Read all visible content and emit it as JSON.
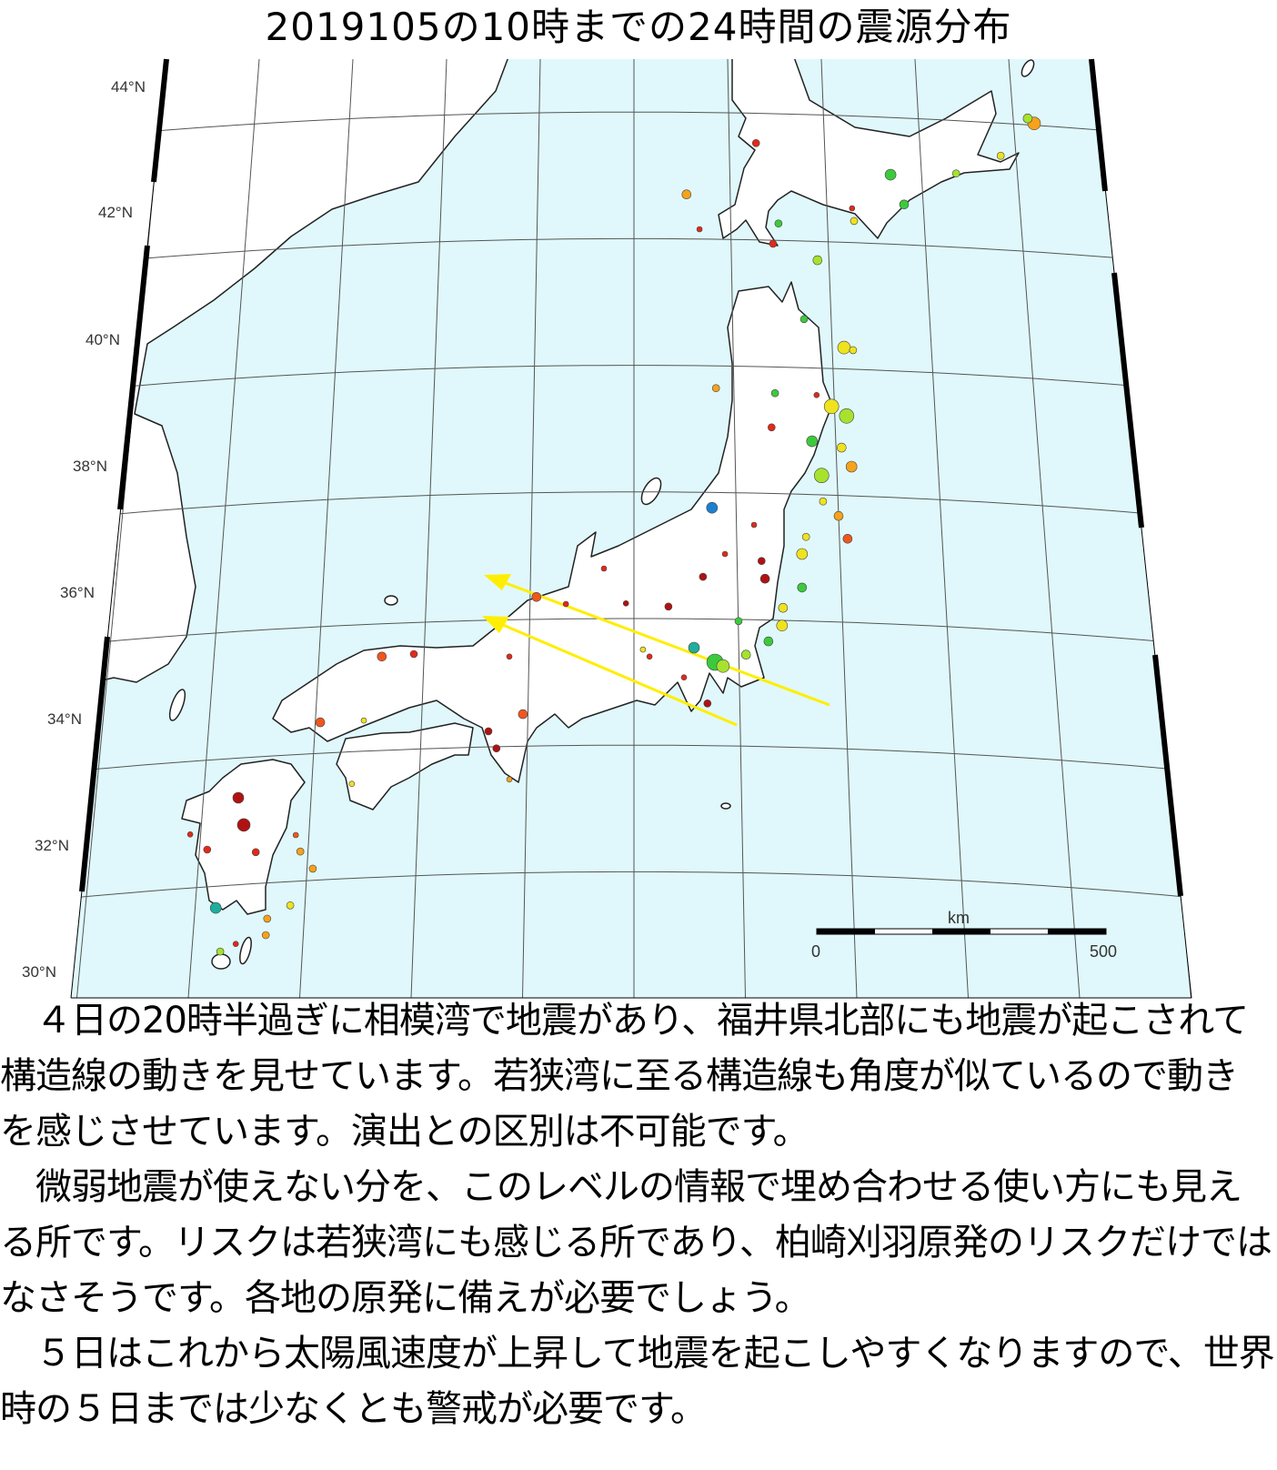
{
  "title": "2019105の10時までの24時間の震源分布",
  "map": {
    "lat_labels": [
      "44°N",
      "42°N",
      "40°N",
      "38°N",
      "36°N",
      "34°N",
      "32°N",
      "30°N"
    ],
    "scale_bar": {
      "unit": "km",
      "start": "0",
      "end": "500"
    },
    "colors": {
      "sea": "#e0f8fb",
      "land": "#ffffff",
      "arrow": "#ffee00",
      "darkred": "#b01212",
      "red": "#e02a1a",
      "orangered": "#f0561e",
      "orange": "#f7a21b",
      "yellow": "#efe21f",
      "lime": "#a6e22e",
      "green": "#3cca3c",
      "teal": "#1fae9c",
      "blue": "#1e7fd0"
    },
    "epicenters": [
      {
        "lon": 146.0,
        "lat": 43.82,
        "c": "orange",
        "s": 7
      },
      {
        "lon": 145.87,
        "lat": 43.9,
        "c": "lime",
        "s": 5
      },
      {
        "lon": 145.33,
        "lat": 43.31,
        "c": "yellow",
        "s": 4
      },
      {
        "lon": 144.44,
        "lat": 43.03,
        "c": "lime",
        "s": 4
      },
      {
        "lon": 143.13,
        "lat": 43.01,
        "c": "green",
        "s": 6
      },
      {
        "lon": 143.4,
        "lat": 42.54,
        "c": "green",
        "s": 5
      },
      {
        "lon": 140.44,
        "lat": 43.51,
        "c": "red",
        "s": 4
      },
      {
        "lon": 139.05,
        "lat": 42.7,
        "c": "orange",
        "s": 5
      },
      {
        "lon": 142.36,
        "lat": 42.48,
        "c": "red",
        "s": 3
      },
      {
        "lon": 142.4,
        "lat": 42.28,
        "c": "yellow",
        "s": 4
      },
      {
        "lon": 139.31,
        "lat": 42.15,
        "c": "red",
        "s": 3
      },
      {
        "lon": 140.78,
        "lat": 41.92,
        "c": "red",
        "s": 4
      },
      {
        "lon": 140.89,
        "lat": 42.24,
        "c": "green",
        "s": 4
      },
      {
        "lon": 141.67,
        "lat": 41.66,
        "c": "lime",
        "s": 5
      },
      {
        "lon": 141.4,
        "lat": 40.73,
        "c": "green",
        "s": 4
      },
      {
        "lon": 142.2,
        "lat": 40.28,
        "c": "yellow",
        "s": 7
      },
      {
        "lon": 142.38,
        "lat": 40.24,
        "c": "yellow",
        "s": 4
      },
      {
        "lon": 140.82,
        "lat": 39.56,
        "c": "green",
        "s": 4
      },
      {
        "lon": 141.65,
        "lat": 39.53,
        "c": "red",
        "s": 3
      },
      {
        "lon": 141.95,
        "lat": 39.35,
        "c": "yellow",
        "s": 8
      },
      {
        "lon": 142.25,
        "lat": 39.2,
        "c": "lime",
        "s": 8
      },
      {
        "lon": 141.56,
        "lat": 38.8,
        "c": "green",
        "s": 6
      },
      {
        "lon": 142.15,
        "lat": 38.7,
        "c": "yellow",
        "s": 5
      },
      {
        "lon": 142.35,
        "lat": 38.4,
        "c": "orange",
        "s": 6
      },
      {
        "lon": 141.75,
        "lat": 38.26,
        "c": "lime",
        "s": 8
      },
      {
        "lon": 141.78,
        "lat": 37.85,
        "c": "yellow",
        "s": 4
      },
      {
        "lon": 142.09,
        "lat": 37.62,
        "c": "orange",
        "s": 5
      },
      {
        "lon": 142.27,
        "lat": 37.26,
        "c": "orangered",
        "s": 5
      },
      {
        "lon": 141.36,
        "lat": 37.02,
        "c": "yellow",
        "s": 6
      },
      {
        "lon": 141.44,
        "lat": 37.29,
        "c": "yellow",
        "s": 4
      },
      {
        "lon": 139.64,
        "lat": 39.64,
        "c": "orange",
        "s": 4
      },
      {
        "lon": 140.75,
        "lat": 39.02,
        "c": "red",
        "s": 4
      },
      {
        "lon": 139.56,
        "lat": 37.75,
        "c": "blue",
        "s": 6
      },
      {
        "lon": 140.4,
        "lat": 37.48,
        "c": "red",
        "s": 3
      },
      {
        "lon": 140.55,
        "lat": 36.91,
        "c": "darkred",
        "s": 4
      },
      {
        "lon": 140.62,
        "lat": 36.63,
        "c": "darkred",
        "s": 5
      },
      {
        "lon": 139.38,
        "lat": 36.66,
        "c": "darkred",
        "s": 4
      },
      {
        "lon": 141.36,
        "lat": 36.49,
        "c": "green",
        "s": 5
      },
      {
        "lon": 140.98,
        "lat": 36.17,
        "c": "yellow",
        "s": 5
      },
      {
        "lon": 140.96,
        "lat": 35.89,
        "c": "yellow",
        "s": 6
      },
      {
        "lon": 140.09,
        "lat": 35.96,
        "c": "green",
        "s": 4
      },
      {
        "lon": 140.69,
        "lat": 35.64,
        "c": "green",
        "s": 5
      },
      {
        "lon": 140.24,
        "lat": 35.43,
        "c": "lime",
        "s": 5
      },
      {
        "lon": 139.2,
        "lat": 35.54,
        "c": "teal",
        "s": 6
      },
      {
        "lon": 139.62,
        "lat": 35.31,
        "c": "green",
        "s": 9
      },
      {
        "lon": 139.78,
        "lat": 35.25,
        "c": "lime",
        "s": 7
      },
      {
        "lon": 139.82,
        "lat": 37.02,
        "c": "red",
        "s": 3
      },
      {
        "lon": 138.69,
        "lat": 36.19,
        "c": "darkred",
        "s": 4
      },
      {
        "lon": 137.4,
        "lat": 36.79,
        "c": "red",
        "s": 3
      },
      {
        "lon": 137.84,
        "lat": 36.24,
        "c": "darkred",
        "s": 3
      },
      {
        "lon": 138.31,
        "lat": 35.4,
        "c": "red",
        "s": 3
      },
      {
        "lon": 138.18,
        "lat": 35.51,
        "c": "yellow",
        "s": 3
      },
      {
        "lon": 139.0,
        "lat": 35.07,
        "c": "red",
        "s": 3
      },
      {
        "lon": 139.47,
        "lat": 34.66,
        "c": "darkred",
        "s": 4
      },
      {
        "lon": 136.05,
        "lat": 36.34,
        "c": "orangered",
        "s": 5
      },
      {
        "lon": 136.64,
        "lat": 36.23,
        "c": "red",
        "s": 3
      },
      {
        "lon": 135.78,
        "lat": 34.49,
        "c": "orangered",
        "s": 5
      },
      {
        "lon": 135.51,
        "lat": 35.4,
        "c": "red",
        "s": 3
      },
      {
        "lon": 135.09,
        "lat": 34.22,
        "c": "darkred",
        "s": 4
      },
      {
        "lon": 135.25,
        "lat": 33.95,
        "c": "darkred",
        "s": 4
      },
      {
        "lon": 135.51,
        "lat": 33.46,
        "c": "orange",
        "s": 3
      },
      {
        "lon": 133.6,
        "lat": 35.44,
        "c": "red",
        "s": 4
      },
      {
        "lon": 132.96,
        "lat": 35.4,
        "c": "orangered",
        "s": 5
      },
      {
        "lon": 131.73,
        "lat": 34.36,
        "c": "orangered",
        "s": 5
      },
      {
        "lon": 132.6,
        "lat": 34.39,
        "c": "yellow",
        "s": 3
      },
      {
        "lon": 132.36,
        "lat": 33.39,
        "c": "yellow",
        "s": 3
      },
      {
        "lon": 130.09,
        "lat": 33.17,
        "c": "darkred",
        "s": 6
      },
      {
        "lon": 130.2,
        "lat": 32.74,
        "c": "darkred",
        "s": 7
      },
      {
        "lon": 130.44,
        "lat": 32.31,
        "c": "red",
        "s": 4
      },
      {
        "lon": 129.47,
        "lat": 32.35,
        "c": "red",
        "s": 4
      },
      {
        "lon": 129.13,
        "lat": 32.59,
        "c": "red",
        "s": 3
      },
      {
        "lon": 131.24,
        "lat": 32.58,
        "c": "orangered",
        "s": 3
      },
      {
        "lon": 131.33,
        "lat": 32.32,
        "c": "orange",
        "s": 4
      },
      {
        "lon": 131.58,
        "lat": 32.05,
        "c": "orange",
        "s": 4
      },
      {
        "lon": 131.13,
        "lat": 31.47,
        "c": "yellow",
        "s": 4
      },
      {
        "lon": 130.67,
        "lat": 31.26,
        "c": "orange",
        "s": 4
      },
      {
        "lon": 130.64,
        "lat": 31.0,
        "c": "orange",
        "s": 4
      },
      {
        "lon": 129.64,
        "lat": 31.43,
        "c": "teal",
        "s": 6
      },
      {
        "lon": 129.73,
        "lat": 30.74,
        "c": "lime",
        "s": 4
      },
      {
        "lon": 130.04,
        "lat": 30.86,
        "c": "red",
        "s": 3
      }
    ]
  },
  "body": {
    "lines": [
      "　４日の20時半過ぎに相模湾で地震があり、福井県北部にも地震が起こされて",
      "構造線の動きを見せています。若狭湾に至る構造線も角度が似ているので動き",
      "を感じさせています。演出との区別は不可能です。",
      "　微弱地震が使えない分を、このレベルの情報で埋め合わせる使い方にも見え",
      "る所です。リスクは若狭湾にも感じる所であり、柏崎刈羽原発のリスクだけでは",
      "なさそうです。各地の原発に備えが必要でしょう。",
      "　５日はこれから太陽風速度が上昇して地震を起こしやすくなりますので、世界",
      "時の５日までは少なくとも警戒が必要です。"
    ]
  }
}
